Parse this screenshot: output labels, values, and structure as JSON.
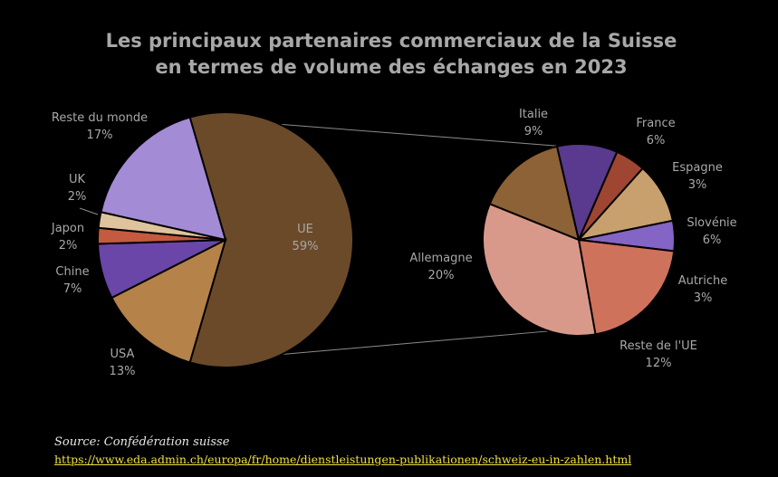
{
  "title_lines": [
    "Les principaux partenaires commerciaux de la Suisse",
    "en termes de volume des échanges en 2023"
  ],
  "source": "Source:  Confédération suisse",
  "source_url": "https://www.eda.admin.ch/europa/fr/home/dienstleistungen-publikationen/schweiz-eu-in-zahlen.html",
  "chart_data": [
    {
      "type": "pie",
      "title": "Les principaux partenaires commerciaux de la Suisse en termes de volume des échanges en 2023",
      "slices": [
        {
          "label": "UE",
          "value": 59,
          "display": "59%",
          "color": "#6b4a2a"
        },
        {
          "label": "USA",
          "value": 13,
          "display": "13%",
          "color": "#b5824a"
        },
        {
          "label": "Chine",
          "value": 7,
          "display": "7%",
          "color": "#6a46a8"
        },
        {
          "label": "Japon",
          "value": 2,
          "display": "2%",
          "color": "#c45a3f"
        },
        {
          "label": "UK",
          "value": 2,
          "display": "2%",
          "color": "#dfc39c"
        },
        {
          "label": "Reste du monde",
          "value": 17,
          "display": "17%",
          "color": "#a48bd6"
        }
      ]
    },
    {
      "type": "pie",
      "title": "UE",
      "slices": [
        {
          "label": "Italie",
          "value": 9,
          "display": "9%",
          "color": "#8c6236"
        },
        {
          "label": "France",
          "value": 6,
          "display": "6%",
          "color": "#593a8e"
        },
        {
          "label": "Espagne",
          "value": 3,
          "display": "3%",
          "color": "#9e4632"
        },
        {
          "label": "Slovénie",
          "value": 6,
          "display": "6%",
          "color": "#c8a06e"
        },
        {
          "label": "Autriche",
          "value": 3,
          "display": "3%",
          "color": "#8464c4"
        },
        {
          "label": "Reste de l'UE",
          "value": 12,
          "display": "12%",
          "color": "#cf725b"
        },
        {
          "label": "Allemagne",
          "value": 20,
          "display": "20%",
          "color": "#d9998a"
        }
      ]
    }
  ]
}
